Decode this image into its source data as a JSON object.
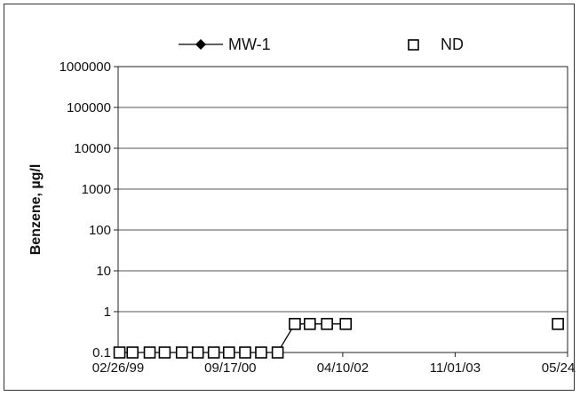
{
  "chart_data": {
    "type": "line",
    "title": "",
    "xlabel": "",
    "ylabel": "Benzene, µg/l",
    "y_scale": "log",
    "ylim": [
      0.1,
      1000000
    ],
    "xlim": [
      "1999-02-26",
      "2005-05-24"
    ],
    "y_ticks": [
      "0.1",
      "1",
      "10",
      "100",
      "1000",
      "10000",
      "100000",
      "1000000"
    ],
    "x_ticks": [
      "02/26/99",
      "09/17/00",
      "04/10/02",
      "11/01/03",
      "05/24/05"
    ],
    "grid": "horizontal",
    "legend_placement": "top",
    "series": [
      {
        "name": "MW-1",
        "style": "line-with-diamond-marker",
        "color": "#000000",
        "points": [
          {
            "x": "1999-03-05",
            "y": 0.1
          },
          {
            "x": "1999-05-10",
            "y": 0.1
          },
          {
            "x": "1999-08-05",
            "y": 0.1
          },
          {
            "x": "1999-10-20",
            "y": 0.1
          },
          {
            "x": "2000-01-15",
            "y": 0.1
          },
          {
            "x": "2000-04-05",
            "y": 0.1
          },
          {
            "x": "2000-06-25",
            "y": 0.1
          },
          {
            "x": "2000-09-10",
            "y": 0.1
          },
          {
            "x": "2000-12-01",
            "y": 0.1
          },
          {
            "x": "2001-02-20",
            "y": 0.1
          },
          {
            "x": "2001-05-15",
            "y": 0.1
          },
          {
            "x": "2001-08-10",
            "y": 0.5
          },
          {
            "x": "2001-10-25",
            "y": 0.5
          },
          {
            "x": "2002-01-20",
            "y": 0.5
          },
          {
            "x": "2002-04-25",
            "y": 0.5
          }
        ]
      },
      {
        "name": "ND",
        "style": "open-square-marker",
        "color": "#000000",
        "points": [
          {
            "x": "1999-03-05",
            "y": 0.1
          },
          {
            "x": "1999-05-10",
            "y": 0.1
          },
          {
            "x": "1999-08-05",
            "y": 0.1
          },
          {
            "x": "1999-10-20",
            "y": 0.1
          },
          {
            "x": "2000-01-15",
            "y": 0.1
          },
          {
            "x": "2000-04-05",
            "y": 0.1
          },
          {
            "x": "2000-06-25",
            "y": 0.1
          },
          {
            "x": "2000-09-10",
            "y": 0.1
          },
          {
            "x": "2000-12-01",
            "y": 0.1
          },
          {
            "x": "2001-02-20",
            "y": 0.1
          },
          {
            "x": "2001-05-15",
            "y": 0.1
          },
          {
            "x": "2001-08-10",
            "y": 0.5
          },
          {
            "x": "2001-10-25",
            "y": 0.5
          },
          {
            "x": "2002-01-20",
            "y": 0.5
          },
          {
            "x": "2002-04-25",
            "y": 0.5
          },
          {
            "x": "2005-04-05",
            "y": 0.5
          }
        ]
      }
    ]
  }
}
